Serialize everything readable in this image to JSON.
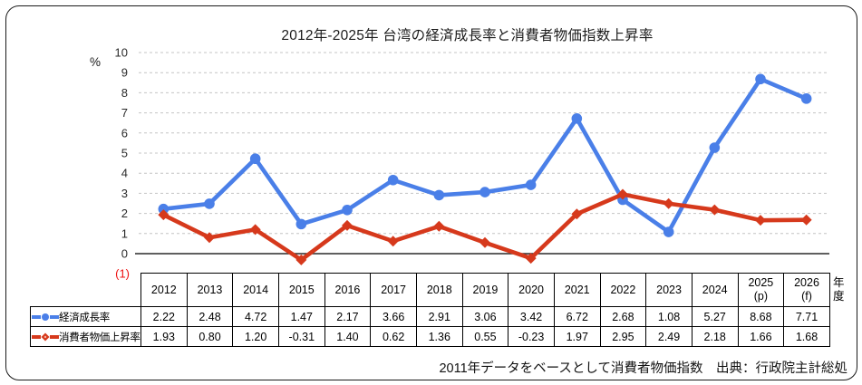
{
  "title": "2012年-2025年 台湾の経済成長率と消費者物価指数上昇率",
  "footer": "2011年データをベースとして消費者物価指数　出典：行政院主計総処",
  "axis": {
    "unit_label": "%",
    "year_axis_label": "年度",
    "negative_one_label": "(1)"
  },
  "colors": {
    "growth_blue": "#4a7fe8",
    "cpi_red": "#d6391c",
    "negative_label_red": "#ee1111",
    "gridline_gray": "#c4c4c4",
    "zero_line": "#2a2a2a"
  },
  "chart_data": {
    "type": "line",
    "title": "2012年-2025年 台湾の経済成長率と消費者物価指数上昇率",
    "categories": [
      "2012",
      "2013",
      "2014",
      "2015",
      "2016",
      "2017",
      "2018",
      "2019",
      "2020",
      "2021",
      "2022",
      "2023",
      "2024",
      "2025 (p)",
      "2026 (f)"
    ],
    "series": [
      {
        "name": "経済成長率",
        "marker": "circle",
        "color": "#4a7fe8",
        "values": [
          2.22,
          2.48,
          4.72,
          1.47,
          2.17,
          3.66,
          2.91,
          3.06,
          3.42,
          6.72,
          2.68,
          1.08,
          5.27,
          8.68,
          7.71
        ]
      },
      {
        "name": "消費者物価上昇率",
        "marker": "diamond",
        "color": "#d6391c",
        "values": [
          1.93,
          0.8,
          1.2,
          -0.31,
          1.4,
          0.62,
          1.36,
          0.55,
          -0.23,
          1.97,
          2.95,
          2.49,
          2.18,
          1.66,
          1.68
        ]
      }
    ],
    "xlabel": "年度",
    "ylabel": "%",
    "ylim": [
      -1,
      10
    ],
    "yticks": [
      0,
      1,
      2,
      3,
      4,
      5,
      6,
      7,
      8,
      9,
      10
    ],
    "grid": true,
    "legend_position": "table-left-column"
  },
  "table": {
    "year_headers": [
      "2012",
      "2013",
      "2014",
      "2015",
      "2016",
      "2017",
      "2018",
      "2019",
      "2020",
      "2021",
      "2022",
      "2023",
      "2024",
      "2025\n(p)",
      "2026\n(f)"
    ],
    "rows": [
      {
        "label": "経済成長率",
        "marker": "circle",
        "color": "#4a7fe8",
        "values": [
          "2.22",
          "2.48",
          "4.72",
          "1.47",
          "2.17",
          "3.66",
          "2.91",
          "3.06",
          "3.42",
          "6.72",
          "2.68",
          "1.08",
          "5.27",
          "8.68",
          "7.71"
        ]
      },
      {
        "label": "消費者物価上昇率",
        "marker": "diamond",
        "color": "#d6391c",
        "values": [
          "1.93",
          "0.80",
          "1.20",
          "-0.31",
          "1.40",
          "0.62",
          "1.36",
          "0.55",
          "-0.23",
          "1.97",
          "2.95",
          "2.49",
          "2.18",
          "1.66",
          "1.68"
        ]
      }
    ]
  }
}
